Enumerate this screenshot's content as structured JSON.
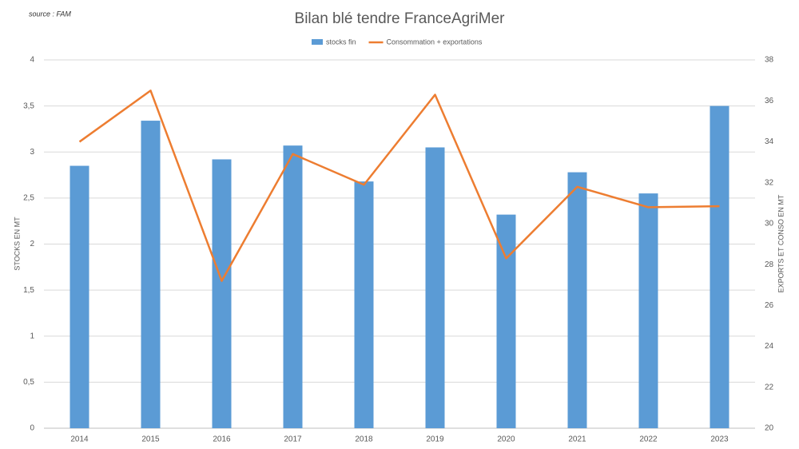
{
  "chart_data": {
    "type": "bar_line",
    "title": "Bilan blé tendre FranceAgriMer",
    "source": "source : FAM",
    "ylabel": "STOCKS EN MT",
    "y2label": "EXPORTS ET CONSO EN MT",
    "categories": [
      "2014",
      "2015",
      "2016",
      "2017",
      "2018",
      "2019",
      "2020",
      "2021",
      "2022",
      "2023"
    ],
    "series": [
      {
        "name": "stocks fin",
        "type": "bar",
        "color": "#5b9bd5",
        "values": [
          2.85,
          3.34,
          2.92,
          3.07,
          2.68,
          3.05,
          2.32,
          2.78,
          2.55,
          3.5
        ]
      },
      {
        "name": "Consommation + exportations",
        "type": "line",
        "axis": "y2",
        "color": "#ed7d31",
        "values": [
          34.0,
          36.5,
          27.2,
          33.4,
          31.9,
          36.3,
          28.3,
          31.8,
          30.8,
          30.85
        ]
      }
    ],
    "ylim": [
      0,
      4
    ],
    "yticks": [
      0,
      {
        "value": 0.5,
        "label": "0,5"
      },
      1,
      {
        "value": 1.5,
        "label": "1,5"
      },
      2,
      {
        "value": 2.5,
        "label": "2,5"
      },
      3,
      {
        "value": 3.5,
        "label": "3,5"
      },
      4
    ],
    "y2lim": [
      20,
      38
    ],
    "y2ticks": [
      20,
      22,
      24,
      26,
      28,
      30,
      32,
      34,
      36,
      38
    ],
    "grid": true,
    "legend": "top"
  }
}
